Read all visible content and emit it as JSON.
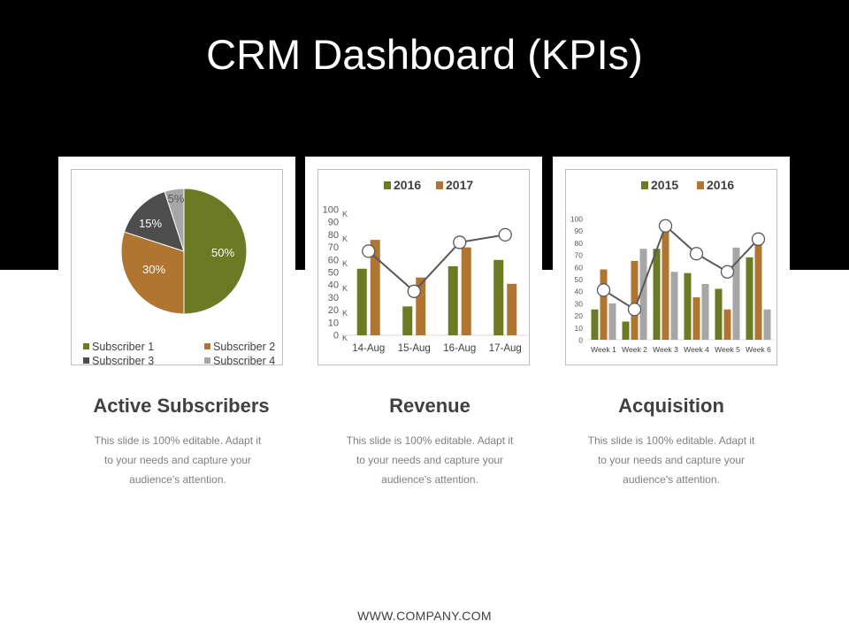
{
  "title": "CRM Dashboard (KPIs)",
  "footer": "WWW.COMPANY.COM",
  "colors": {
    "green": "#6b7a23",
    "orange": "#b07530",
    "dark": "#4d4d4d",
    "grey": "#a6a6a6",
    "line": "#595959"
  },
  "sections": [
    {
      "title": "Active Subscribers",
      "desc1": "This slide is 100% editable. Adapt it",
      "desc2": "to your needs and capture your",
      "desc3": "audience's attention."
    },
    {
      "title": "Revenue",
      "desc1": "This slide is 100% editable. Adapt it",
      "desc2": "to your needs and capture your",
      "desc3": "audience's attention."
    },
    {
      "title": "Acquisition",
      "desc1": "This slide is 100% editable. Adapt it",
      "desc2": "to your needs and capture your",
      "desc3": "audience's attention."
    }
  ],
  "chart_data": [
    {
      "type": "pie",
      "title": "Active Subscribers",
      "categories": [
        "Subscriber 1",
        "Subscriber 2",
        "Subscriber 3",
        "Subscriber 4"
      ],
      "values": [
        50,
        30,
        15,
        5
      ],
      "labels": [
        "50%",
        "30%",
        "15%",
        "5%"
      ],
      "legend": "bottom"
    },
    {
      "type": "bar",
      "title": "Revenue",
      "categories": [
        "14-Aug",
        "15-Aug",
        "16-Aug",
        "17-Aug"
      ],
      "series": [
        {
          "name": "2016",
          "values": [
            53,
            23,
            55,
            60
          ]
        },
        {
          "name": "2017",
          "values": [
            76,
            46,
            70,
            41
          ]
        }
      ],
      "line": {
        "values": [
          67,
          35,
          74,
          80
        ]
      },
      "ylim": [
        0,
        100
      ],
      "yticks": [
        "100",
        "90",
        "80",
        "70",
        "60",
        "50",
        "40",
        "30",
        "20",
        "10",
        "0"
      ],
      "yunits": [
        "K",
        "K",
        "K",
        "K",
        "K",
        "K"
      ],
      "legend": "top"
    },
    {
      "type": "bar",
      "title": "Acquisition",
      "categories": [
        "Week 1",
        "Week 2",
        "Week 3",
        "Week 4",
        "Week 5",
        "Week 6"
      ],
      "series": [
        {
          "name": "2015",
          "values": [
            25,
            15,
            75,
            55,
            42,
            68
          ]
        },
        {
          "name": "2016",
          "values": [
            58,
            65,
            92,
            35,
            25,
            88
          ]
        },
        {
          "name": "",
          "values": [
            30,
            75,
            56,
            46,
            76,
            25
          ]
        }
      ],
      "line": {
        "values": [
          41,
          25,
          94,
          71,
          56,
          83
        ]
      },
      "ylim": [
        0,
        100
      ],
      "yticks": [
        "100",
        "90",
        "80",
        "70",
        "60",
        "50",
        "40",
        "30",
        "20",
        "10",
        "0"
      ],
      "legend": "top"
    }
  ]
}
